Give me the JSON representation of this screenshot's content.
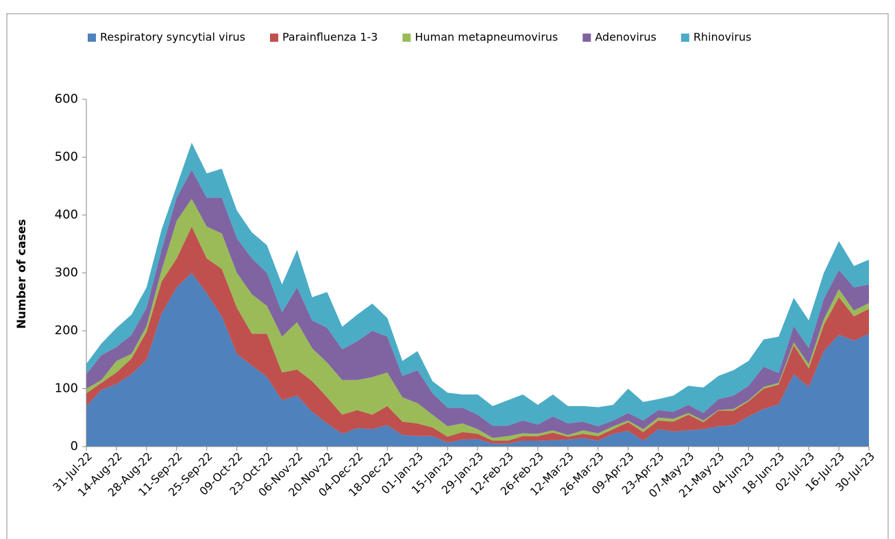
{
  "chart_data": {
    "type": "stacked_area",
    "y_label": "Number of cases",
    "categories": [
      "31-Jul-22",
      null,
      "14-Aug-22",
      null,
      "28-Aug-22",
      null,
      "11-Sep-22",
      null,
      "25-Sep-22",
      null,
      "09-Oct-22",
      null,
      "23-Oct-22",
      null,
      "06-Nov-22",
      null,
      "20-Nov-22",
      null,
      "04-Dec-22",
      null,
      "18-Dec-22",
      null,
      "01-Jan-23",
      null,
      "15-Jan-23",
      null,
      "29-Jan-23",
      null,
      "12-Feb-23",
      null,
      "26-Feb-23",
      null,
      "12-Mar-23",
      null,
      "26-Mar-23",
      null,
      "09-Apr-23",
      null,
      "23-Apr-23",
      null,
      "07-May-23",
      null,
      "21-May-23",
      null,
      "04-Jun-23",
      null,
      "18-Jun-23",
      null,
      "02-Jul-23",
      null,
      "16-Jul-23",
      null,
      "30-Jul-23"
    ],
    "series": [
      {
        "name": "Respiratory syncytial virus",
        "color": "#4f81bd",
        "values": [
          70,
          98,
          108,
          125,
          150,
          230,
          275,
          300,
          265,
          225,
          160,
          140,
          120,
          80,
          88,
          60,
          40,
          22,
          32,
          30,
          37,
          20,
          18,
          18,
          7,
          12,
          13,
          5,
          5,
          10,
          10,
          11,
          12,
          15,
          10,
          22,
          27,
          10,
          30,
          26,
          28,
          30,
          35,
          37,
          52,
          65,
          73,
          125,
          103,
          165,
          193,
          183,
          195
        ]
      },
      {
        "name": "Parainfluenza 1-3",
        "color": "#c0504d",
        "values": [
          22,
          12,
          20,
          27,
          48,
          55,
          50,
          80,
          60,
          82,
          80,
          55,
          75,
          48,
          45,
          53,
          45,
          33,
          31,
          25,
          33,
          23,
          22,
          15,
          10,
          13,
          9,
          5,
          5,
          8,
          8,
          13,
          5,
          7,
          8,
          8,
          15,
          15,
          15,
          17,
          27,
          12,
          27,
          25,
          26,
          35,
          34,
          50,
          32,
          45,
          65,
          42,
          43
        ]
      },
      {
        "name": "Human metapneumovirus",
        "color": "#9bbb59",
        "values": [
          8,
          5,
          20,
          8,
          10,
          20,
          65,
          48,
          55,
          61,
          60,
          68,
          48,
          62,
          82,
          57,
          60,
          60,
          52,
          65,
          58,
          42,
          35,
          22,
          18,
          15,
          8,
          5,
          8,
          5,
          4,
          4,
          3,
          6,
          5,
          5,
          3,
          5,
          5,
          5,
          3,
          3,
          1,
          3,
          2,
          3,
          3,
          5,
          7,
          10,
          14,
          10,
          10
        ]
      },
      {
        "name": "Adenovirus",
        "color": "#8064a2",
        "values": [
          25,
          43,
          24,
          33,
          32,
          35,
          40,
          50,
          50,
          62,
          60,
          62,
          57,
          42,
          60,
          48,
          60,
          53,
          67,
          80,
          62,
          37,
          57,
          37,
          32,
          27,
          25,
          21,
          18,
          22,
          16,
          24,
          20,
          15,
          12,
          10,
          13,
          15,
          13,
          12,
          14,
          13,
          19,
          23,
          25,
          35,
          17,
          28,
          28,
          35,
          33,
          40,
          32
        ]
      },
      {
        "name": "Rhinovirus",
        "color": "#4bacc6",
        "values": [
          18,
          20,
          33,
          35,
          35,
          35,
          20,
          47,
          42,
          50,
          48,
          45,
          48,
          48,
          65,
          40,
          62,
          39,
          46,
          47,
          32,
          26,
          33,
          21,
          26,
          23,
          35,
          34,
          44,
          45,
          34,
          38,
          30,
          27,
          33,
          27,
          42,
          32,
          19,
          28,
          33,
          44,
          40,
          44,
          43,
          47,
          63,
          49,
          48,
          45,
          50,
          37,
          43
        ]
      }
    ],
    "ylim": [
      0,
      600
    ],
    "yticks": [
      0,
      100,
      200,
      300,
      400,
      500,
      600
    ],
    "legend": "top"
  }
}
